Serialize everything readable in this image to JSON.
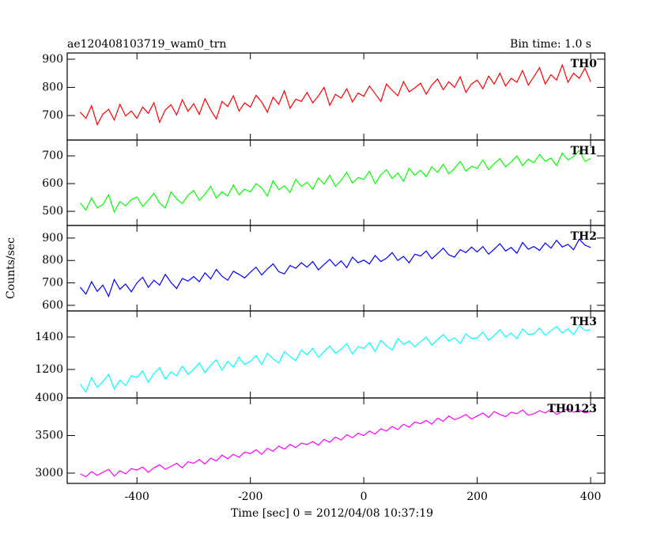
{
  "chart_data": {
    "type": "line",
    "title": "ae120408103719_wam0_trn",
    "subtitle": "Bin time: 1.0 s",
    "ylabel": "Counts/sec",
    "xlabel": "Time [sec] 0 = 2012/04/08 10:37:19",
    "xlim": [
      -523,
      425
    ],
    "xticks": [
      -400,
      -200,
      0,
      200,
      400
    ],
    "x": [
      -500,
      -490,
      -480,
      -470,
      -460,
      -450,
      -440,
      -430,
      -420,
      -410,
      -400,
      -390,
      -380,
      -370,
      -360,
      -350,
      -340,
      -330,
      -320,
      -310,
      -300,
      -290,
      -280,
      -270,
      -260,
      -250,
      -240,
      -230,
      -220,
      -210,
      -200,
      -190,
      -180,
      -170,
      -160,
      -150,
      -140,
      -130,
      -120,
      -110,
      -100,
      -90,
      -80,
      -70,
      -60,
      -50,
      -40,
      -30,
      -20,
      -10,
      0,
      10,
      20,
      30,
      40,
      50,
      60,
      70,
      80,
      90,
      100,
      110,
      120,
      130,
      140,
      150,
      160,
      170,
      180,
      190,
      200,
      210,
      220,
      230,
      240,
      250,
      260,
      270,
      280,
      290,
      300,
      310,
      320,
      330,
      340,
      350,
      360,
      370,
      380,
      390,
      400
    ],
    "series": [
      {
        "name": "TH0",
        "color": "#ff0000",
        "ylim": [
          613,
          922
        ],
        "yticks": [
          700,
          800,
          900
        ],
        "values": [
          712,
          690,
          735,
          668,
          705,
          722,
          684,
          740,
          698,
          716,
          690,
          730,
          708,
          745,
          676,
          720,
          738,
          702,
          756,
          715,
          742,
          704,
          760,
          720,
          688,
          750,
          732,
          770,
          716,
          745,
          730,
          772,
          748,
          712,
          765,
          740,
          788,
          726,
          758,
          750,
          782,
          745,
          770,
          800,
          736,
          775,
          762,
          795,
          748,
          780,
          768,
          805,
          778,
          750,
          812,
          790,
          770,
          820,
          784,
          798,
          815,
          776,
          808,
          830,
          792,
          820,
          800,
          838,
          782,
          812,
          826,
          795,
          840,
          812,
          850,
          805,
          832,
          818,
          860,
          808,
          838,
          870,
          812,
          845,
          826,
          880,
          818,
          850,
          832,
          868,
          820
        ]
      },
      {
        "name": "TH1",
        "color": "#00ff00",
        "ylim": [
          449,
          757
        ],
        "yticks": [
          500,
          600,
          700
        ],
        "values": [
          530,
          505,
          548,
          512,
          525,
          560,
          498,
          535,
          520,
          542,
          552,
          518,
          540,
          565,
          530,
          512,
          570,
          545,
          528,
          558,
          575,
          540,
          562,
          590,
          548,
          570,
          555,
          595,
          560,
          580,
          570,
          600,
          585,
          555,
          610,
          578,
          592,
          568,
          615,
          590,
          605,
          580,
          620,
          598,
          630,
          590,
          612,
          640,
          602,
          622,
          615,
          645,
          600,
          632,
          650,
          618,
          638,
          608,
          655,
          630,
          648,
          625,
          660,
          640,
          670,
          635,
          655,
          680,
          645,
          662,
          655,
          685,
          650,
          672,
          690,
          660,
          678,
          700,
          665,
          688,
          675,
          705,
          680,
          692,
          665,
          710,
          685,
          698,
          720,
          680,
          690
        ]
      },
      {
        "name": "TH2",
        "color": "#0000ff",
        "ylim": [
          575,
          956
        ],
        "yticks": [
          600,
          700,
          800,
          900
        ],
        "values": [
          680,
          650,
          705,
          662,
          690,
          640,
          715,
          672,
          695,
          660,
          700,
          725,
          680,
          712,
          690,
          738,
          702,
          675,
          720,
          708,
          728,
          705,
          745,
          718,
          760,
          730,
          712,
          752,
          738,
          722,
          748,
          770,
          735,
          762,
          785,
          750,
          740,
          778,
          765,
          790,
          770,
          795,
          758,
          782,
          805,
          775,
          798,
          768,
          815,
          790,
          802,
          785,
          822,
          795,
          810,
          835,
          800,
          818,
          790,
          828,
          820,
          842,
          808,
          830,
          855,
          825,
          815,
          848,
          835,
          860,
          838,
          862,
          828,
          850,
          875,
          842,
          858,
          832,
          880,
          850,
          862,
          845,
          878,
          855,
          890,
          860,
          872,
          848,
          895,
          868,
          858
        ]
      },
      {
        "name": "TH3",
        "color": "#00ffff",
        "ylim": [
          1024,
          1561
        ],
        "yticks": [
          1200,
          1400
        ],
        "values": [
          1110,
          1060,
          1150,
          1090,
          1125,
          1170,
          1080,
          1135,
          1100,
          1160,
          1150,
          1190,
          1120,
          1175,
          1210,
          1140,
          1185,
          1160,
          1220,
          1170,
          1200,
          1240,
          1180,
          1225,
          1260,
          1195,
          1250,
          1215,
          1275,
          1230,
          1250,
          1285,
          1230,
          1300,
          1265,
          1240,
          1310,
          1280,
          1255,
          1320,
          1290,
          1330,
          1275,
          1310,
          1345,
          1300,
          1325,
          1360,
          1295,
          1340,
          1330,
          1365,
          1310,
          1380,
          1345,
          1320,
          1390,
          1355,
          1375,
          1340,
          1370,
          1400,
          1350,
          1385,
          1415,
          1375,
          1395,
          1360,
          1420,
          1390,
          1395,
          1430,
          1380,
          1410,
          1445,
          1400,
          1425,
          1390,
          1450,
          1415,
          1420,
          1455,
          1410,
          1440,
          1465,
          1425,
          1450,
          1415,
          1470,
          1440,
          1445
        ]
      },
      {
        "name": "TH0123",
        "color": "#ff00ff",
        "ylim": [
          2863,
          4000
        ],
        "yticks": [
          3000,
          3500,
          4000
        ],
        "values": [
          2990,
          2950,
          3020,
          2970,
          3010,
          3050,
          2960,
          3030,
          2990,
          3060,
          3040,
          3080,
          3010,
          3070,
          3110,
          3050,
          3090,
          3130,
          3070,
          3150,
          3130,
          3180,
          3120,
          3200,
          3160,
          3240,
          3190,
          3250,
          3210,
          3280,
          3260,
          3310,
          3250,
          3330,
          3290,
          3360,
          3320,
          3380,
          3340,
          3400,
          3380,
          3420,
          3370,
          3450,
          3410,
          3480,
          3440,
          3510,
          3470,
          3530,
          3500,
          3560,
          3520,
          3590,
          3560,
          3620,
          3580,
          3650,
          3610,
          3680,
          3660,
          3700,
          3650,
          3730,
          3690,
          3760,
          3710,
          3740,
          3780,
          3720,
          3760,
          3800,
          3740,
          3820,
          3780,
          3750,
          3810,
          3790,
          3840,
          3770,
          3790,
          3830,
          3800,
          3850,
          3780,
          3820,
          3860,
          3810,
          3840,
          3800,
          3820
        ]
      }
    ]
  }
}
